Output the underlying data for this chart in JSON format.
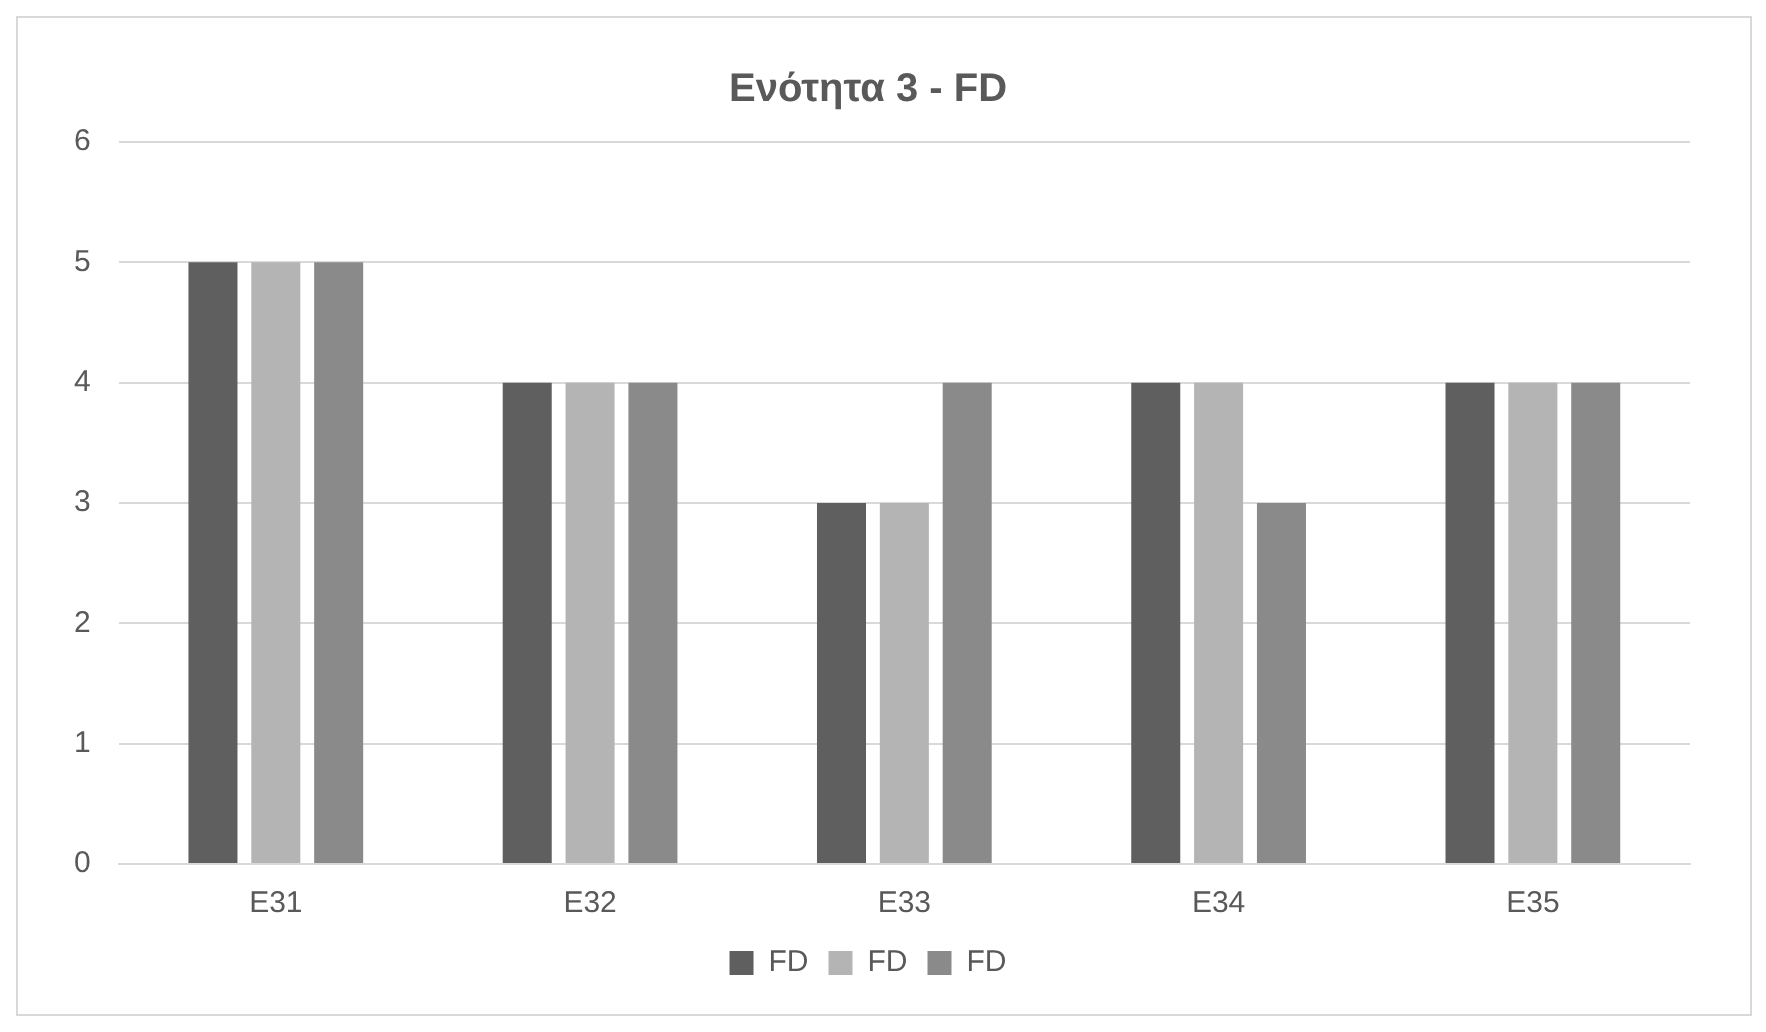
{
  "chart_data": {
    "type": "bar",
    "title": "Ενότητα 3 - FD",
    "categories": [
      "E31",
      "E32",
      "E33",
      "E34",
      "E35"
    ],
    "series": [
      {
        "name": "FD",
        "color": "#5f5f5f",
        "values": [
          5,
          4,
          3,
          4,
          4
        ]
      },
      {
        "name": "FD",
        "color": "#b4b4b4",
        "values": [
          5,
          4,
          3,
          4,
          4
        ]
      },
      {
        "name": "FD",
        "color": "#8a8a8a",
        "values": [
          5,
          4,
          4,
          3,
          4
        ]
      }
    ],
    "ylim": [
      0,
      6
    ],
    "yticks": [
      0,
      1,
      2,
      3,
      4,
      5,
      6
    ],
    "grid": "y",
    "legend": "bottom"
  }
}
